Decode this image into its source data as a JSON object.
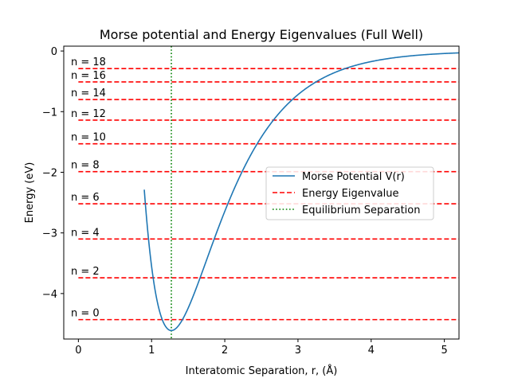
{
  "chart_data": {
    "type": "line",
    "title": "Morse potential and Energy Eigenvalues (Full Well)",
    "xlabel": "Interatomic Separation, r, (Å)",
    "ylabel": "Energy (eV)",
    "xlim": [
      -0.2,
      5.2
    ],
    "ylim": [
      -4.75,
      0.08
    ],
    "xticks": [
      0,
      1,
      2,
      3,
      4,
      5
    ],
    "xtick_labels": [
      "0",
      "1",
      "2",
      "3",
      "4",
      "5"
    ],
    "yticks": [
      0,
      -1,
      -2,
      -3,
      -4
    ],
    "ytick_labels": [
      "0",
      "−1",
      "−2",
      "−3",
      "−4"
    ],
    "grid": false,
    "legend_position": "center-right",
    "series": [
      {
        "name": "Morse Potential V(r)",
        "style": "solid",
        "color": "#1f77b4",
        "params": {
          "De": 4.61,
          "a": 1.45,
          "re": 1.27,
          "rmin": 0.9,
          "rmax": 5.2
        }
      },
      {
        "name": "Energy Eigenvalue",
        "style": "dashed",
        "color": "#ff0000",
        "levels": [
          {
            "label": "n = 0",
            "energy": -4.43
          },
          {
            "label": "n = 2",
            "energy": -3.74
          },
          {
            "label": "n = 4",
            "energy": -3.1
          },
          {
            "label": "n = 6",
            "energy": -2.52
          },
          {
            "label": "n = 8",
            "energy": -1.99
          },
          {
            "label": "n = 10",
            "energy": -1.53
          },
          {
            "label": "n = 12",
            "energy": -1.14
          },
          {
            "label": "n = 14",
            "energy": -0.8
          },
          {
            "label": "n = 16",
            "energy": -0.51
          },
          {
            "label": "n = 18",
            "energy": -0.29
          }
        ]
      },
      {
        "name": "Equilibrium Separation",
        "style": "dotted",
        "color": "#008000",
        "x": 1.27
      }
    ]
  }
}
